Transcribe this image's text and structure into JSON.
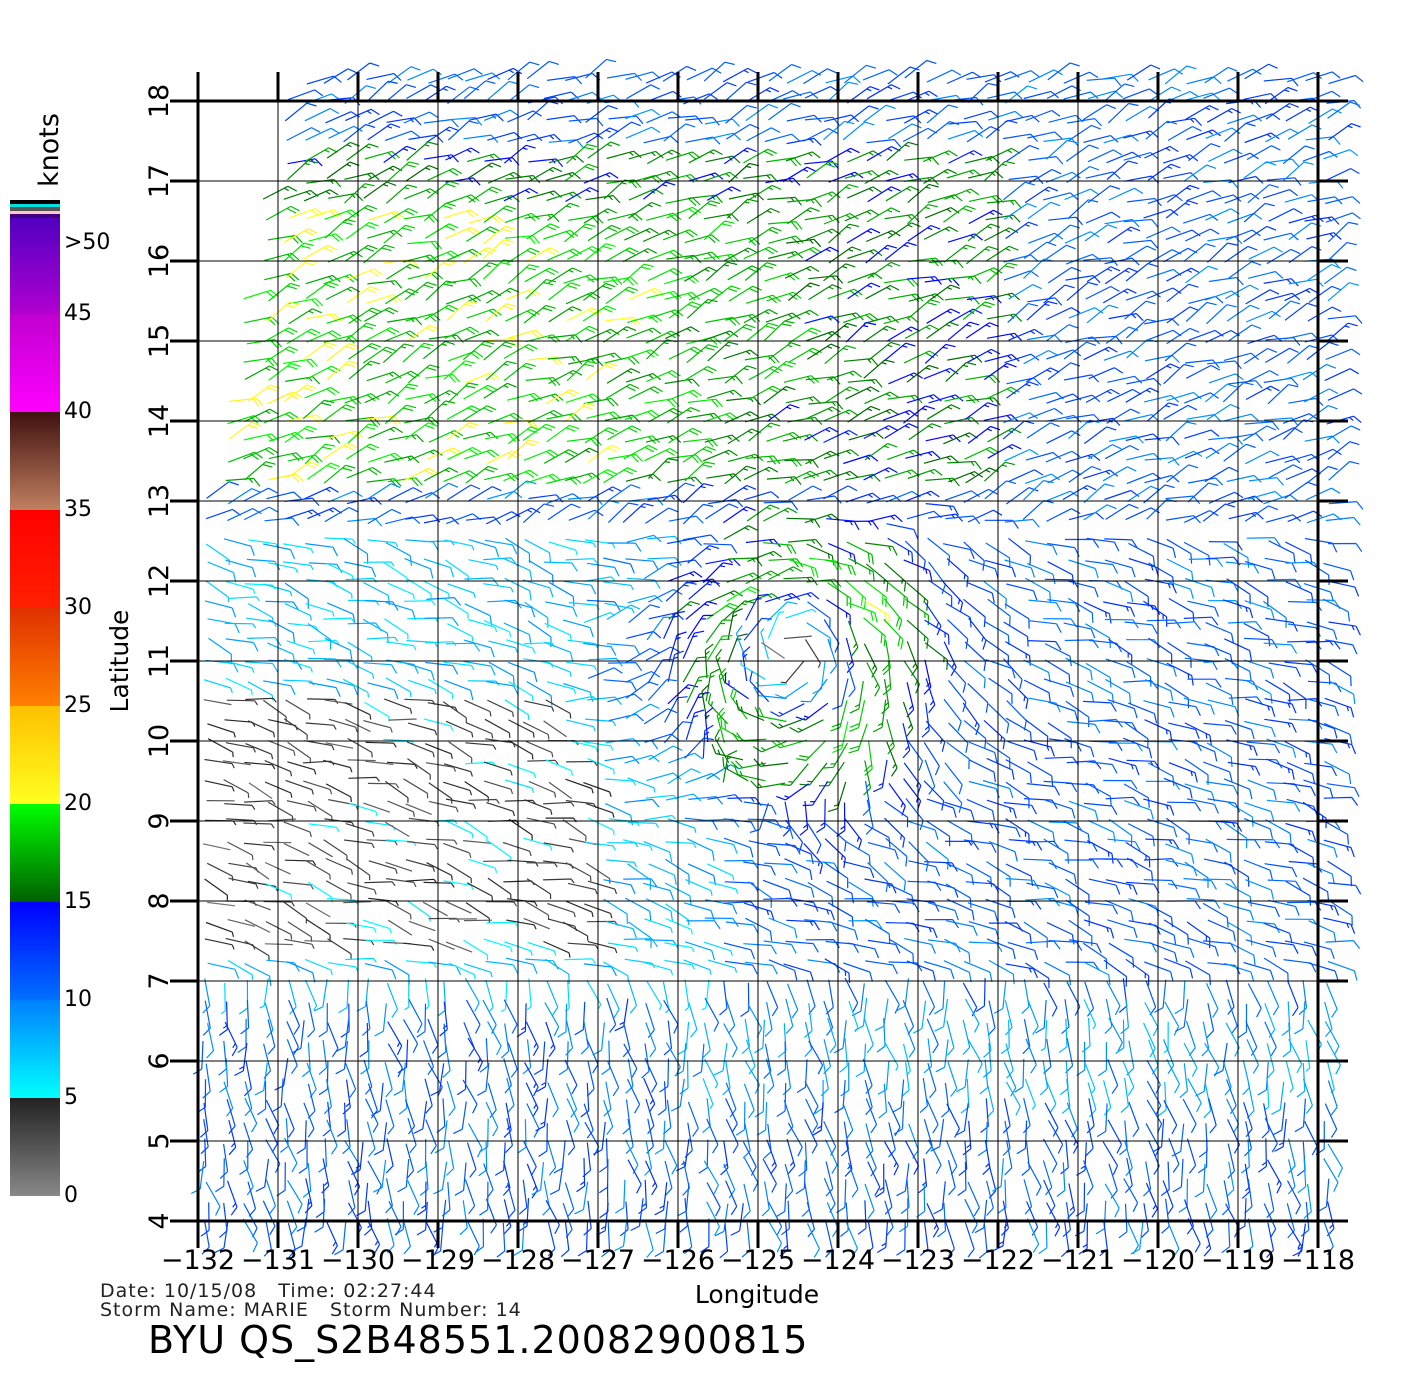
{
  "chart_data": {
    "type": "vector-field",
    "title": "BYU QS_S2B48551.20082900815",
    "xlabel": "Longitude",
    "ylabel": "Latitude",
    "xlim": [
      -132,
      -118
    ],
    "ylim": [
      4,
      18
    ],
    "grid": true,
    "x_ticks": [
      "-132",
      "-131",
      "-130",
      "-129",
      "-128",
      "-127",
      "-126",
      "-125",
      "-124",
      "-123",
      "-122",
      "-121",
      "-120",
      "-119",
      "-118"
    ],
    "y_ticks": [
      "4",
      "5",
      "6",
      "7",
      "8",
      "9",
      "10",
      "11",
      "12",
      "13",
      "14",
      "15",
      "16",
      "17",
      "18"
    ],
    "storm_center": {
      "lon": -124.6,
      "lat": 11.1
    },
    "field_description_speed_knots": {
      "background": 11,
      "north_band": 19,
      "west_calm": 3,
      "cyclone_max": 20
    },
    "colorbar": {
      "units": "knots",
      "labels": [
        "0",
        "5",
        "10",
        "15",
        "20",
        "25",
        "30",
        "35",
        "40",
        "45",
        ">50"
      ],
      "stops": [
        {
          "from": 0,
          "to": 5,
          "bottom": "#888888",
          "top": "#222222"
        },
        {
          "from": 5,
          "to": 10,
          "bottom": "#00ffff",
          "top": "#0080ff"
        },
        {
          "from": 10,
          "to": 15,
          "bottom": "#0070ff",
          "top": "#0000ff"
        },
        {
          "from": 15,
          "to": 20,
          "bottom": "#006000",
          "top": "#00ff00"
        },
        {
          "from": 20,
          "to": 25,
          "bottom": "#ffff20",
          "top": "#ffc000"
        },
        {
          "from": 25,
          "to": 30,
          "bottom": "#ff8000",
          "top": "#e03000"
        },
        {
          "from": 30,
          "to": 35,
          "bottom": "#ff2000",
          "top": "#ff0000"
        },
        {
          "from": 35,
          "to": 40,
          "bottom": "#c08060",
          "top": "#401010"
        },
        {
          "from": 40,
          "to": 45,
          "bottom": "#ff00ff",
          "top": "#c000d0"
        },
        {
          "from": 45,
          "to": 50,
          "bottom": "#b000d0",
          "top": "#5000c0"
        }
      ],
      "top_stripes": [
        "#000000",
        "#00e0e0",
        "#555555",
        "#ffc8c8",
        "#400080"
      ]
    }
  },
  "info": {
    "line1": "Date: 10/15/08   Time: 02:27:44",
    "line2": "Storm Name: MARIE   Storm Number: 14"
  }
}
